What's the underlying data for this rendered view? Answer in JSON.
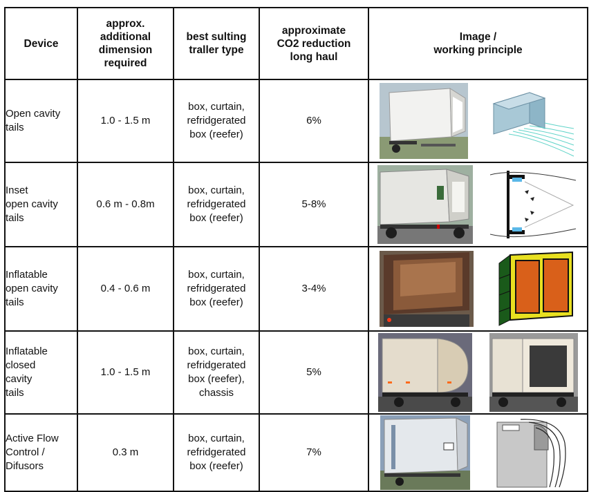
{
  "table": {
    "headers": {
      "device": "Device",
      "dimension": "approx.\nadditional\ndimension\nrequired",
      "trailer": "best sulting\ntraller type",
      "co2": "approximate\nCO2 reduction\nlong haul",
      "image": "Image /\nworking principle"
    },
    "rows": [
      {
        "device": "Open cavity\ntails",
        "dimension": "1.0 - 1.5 m",
        "trailer": "box, curtain,\nrefridgerated\nbox (reefer)",
        "co2": "6%",
        "image_left": "trailer-open-cavity-photo",
        "image_right": "cavity-flow-simulation-diagram"
      },
      {
        "device": "Inset\nopen cavity\ntails",
        "dimension": "0.6 m - 0.8m",
        "trailer": "box, curtain,\nrefridgerated\nbox (reefer)",
        "co2": "5-8%",
        "image_left": "trailer-inset-cavity-photo",
        "image_right": "inset-cavity-flow-diagram"
      },
      {
        "device": "Inflatable\nopen cavity\ntails",
        "dimension": "0.4 - 0.6 m",
        "trailer": "box, curtain,\nrefridgerated\nbox (reefer)",
        "co2": "3-4%",
        "image_left": "trailer-inflatable-open-photo",
        "image_right": "inflatable-frame-render"
      },
      {
        "device": "Inflatable\nclosed\ncavity\ntails",
        "dimension": "1.0 - 1.5 m",
        "trailer": "box, curtain,\nrefridgerated\nbox (reefer),\nchassis",
        "co2": "5%",
        "image_left": "trailer-inflatable-closed-photo",
        "image_right": "trailer-inflatable-closed-open-photo"
      },
      {
        "device": "Active Flow\nControl /\nDifusors",
        "dimension": "0.3 m",
        "trailer": "box, curtain,\nrefridgerated\nbox (reefer)",
        "co2": "7%",
        "image_left": "trailer-active-flow-photo",
        "image_right": "active-flow-diagram"
      }
    ]
  }
}
